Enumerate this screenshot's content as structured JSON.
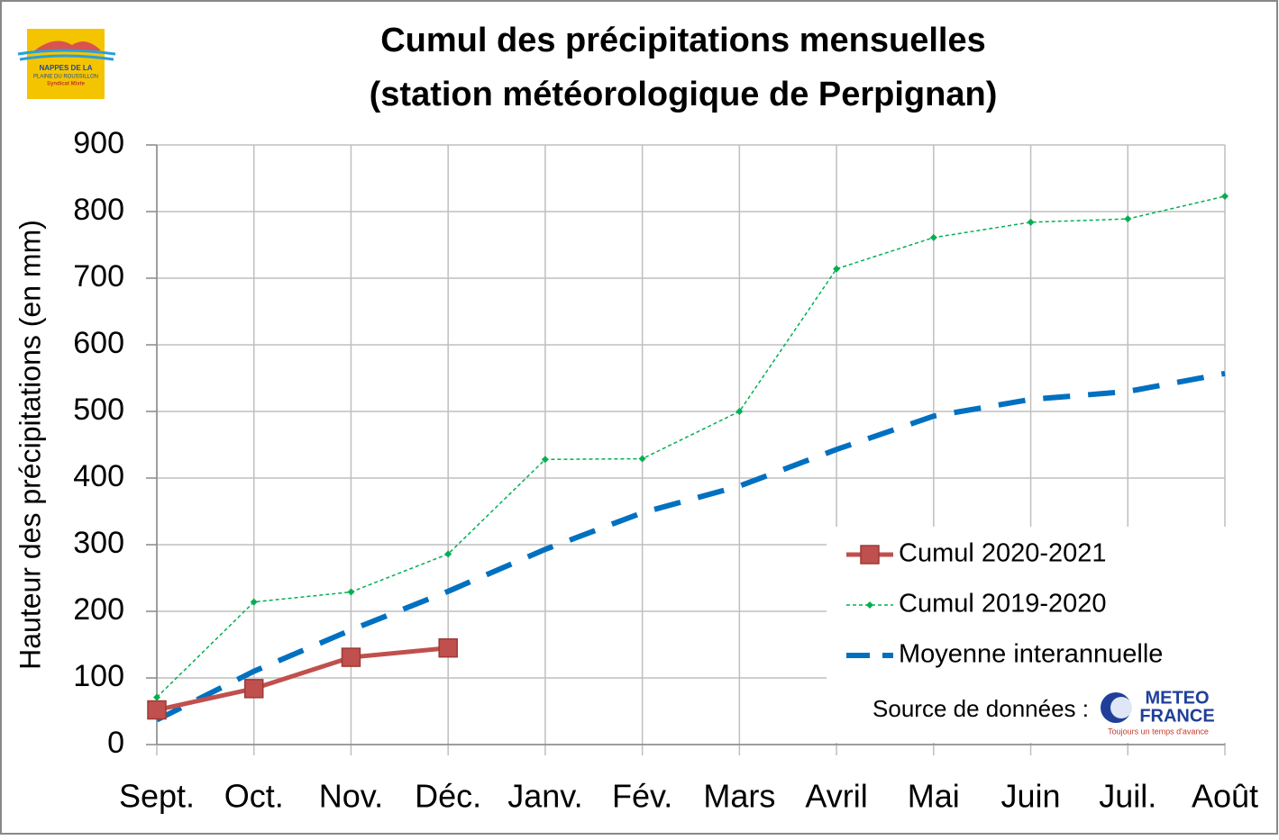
{
  "chart_data": {
    "type": "line",
    "title": "Cumul des précipitations mensuelles",
    "subtitle": "(station météorologique de Perpignan)",
    "y_label": "Hauteur des précipitations (en mm)",
    "categories": [
      "Sept.",
      "Oct.",
      "Nov.",
      "Déc.",
      "Janv.",
      "Fév.",
      "Mars",
      "Avril",
      "Mai",
      "Juin",
      "Juil.",
      "Août"
    ],
    "series": [
      {
        "name": "Cumul 2020-2021",
        "color": "#c0504d",
        "line_style": "solid",
        "marker": "square",
        "values": [
          52,
          84,
          131,
          145,
          null,
          null,
          null,
          null,
          null,
          null,
          null,
          null
        ]
      },
      {
        "name": "Cumul 2019-2020",
        "color": "#00b050",
        "line_style": "dotted",
        "marker": "diamond",
        "values": [
          71,
          214,
          229,
          286,
          428,
          429,
          500,
          714,
          761,
          784,
          789,
          823
        ]
      },
      {
        "name": "Moyenne interannuelle",
        "color": "#0070c0",
        "line_style": "dashed",
        "marker": "none",
        "values": [
          37,
          110,
          172,
          230,
          293,
          348,
          388,
          443,
          493,
          518,
          530,
          557
        ]
      }
    ],
    "ylim": [
      0,
      900
    ],
    "yticks": [
      0,
      100,
      200,
      300,
      400,
      500,
      600,
      700,
      800,
      900
    ],
    "grid": true,
    "legend": "lower right",
    "annotations": [
      "Source de données :"
    ]
  },
  "logos": {
    "syndicat": [
      "NAPPES DE LA",
      "PLAINE DU ROUSSILLON",
      "Syndicat Mixte"
    ],
    "meteo": [
      "METEO",
      "FRANCE",
      "Toujours un temps d'avance"
    ]
  }
}
